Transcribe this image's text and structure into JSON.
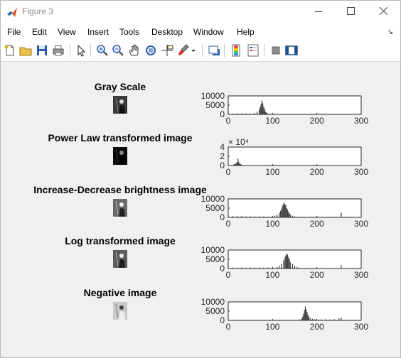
{
  "window": {
    "title": "Figure 3",
    "controls": [
      "minimize",
      "maximize",
      "close"
    ]
  },
  "menubar": {
    "items": [
      "File",
      "Edit",
      "View",
      "Insert",
      "Tools",
      "Desktop",
      "Window",
      "Help"
    ]
  },
  "toolbar": {
    "icons": [
      "new-figure-icon",
      "open-file-icon",
      "save-icon",
      "print-icon",
      "edit-plot-arrow-icon",
      "zoom-in-icon",
      "zoom-out-icon",
      "pan-hand-icon",
      "rotate-3d-icon",
      "data-cursor-icon",
      "brush-icon",
      "brush-dropdown-icon",
      "link-plot-icon",
      "insert-colorbar-icon",
      "insert-legend-icon",
      "hide-plot-tools-icon",
      "show-plot-tools-icon"
    ]
  },
  "colors": {
    "background": "#f0f0f0",
    "bar": "#3c3c3c",
    "axes_face": "#ffffff"
  },
  "panels": [
    {
      "title": "Gray Scale",
      "thumb_tone": "dark-gray"
    },
    {
      "title": "Power Law transformed image",
      "thumb_tone": "black"
    },
    {
      "title": "Increase-Decrease brightness image",
      "thumb_tone": "gray"
    },
    {
      "title": "Log transformed image",
      "thumb_tone": "gray"
    },
    {
      "title": "Negative image",
      "thumb_tone": "light"
    }
  ],
  "chart_data": [
    {
      "type": "bar",
      "xlim": [
        0,
        300
      ],
      "ylim": [
        0,
        10000
      ],
      "xticks": [
        "0",
        "100",
        "200",
        "300"
      ],
      "yticks": [
        "0",
        "5000",
        "10000"
      ],
      "exponent_label": "",
      "x": [
        0,
        10,
        20,
        30,
        40,
        50,
        60,
        65,
        70,
        72,
        74,
        76,
        78,
        80,
        82,
        84,
        86,
        88,
        90,
        95,
        100
      ],
      "values": [
        800,
        500,
        600,
        450,
        500,
        400,
        800,
        1500,
        2500,
        4000,
        5500,
        7500,
        6000,
        4000,
        3000,
        1500,
        1000,
        600,
        400,
        200,
        100
      ]
    },
    {
      "type": "bar",
      "xlim": [
        0,
        300
      ],
      "ylim": [
        0,
        40000
      ],
      "xticks": [
        "0",
        "100",
        "200",
        "300"
      ],
      "yticks": [
        "0",
        "2",
        "4"
      ],
      "exponent_label": "× 10⁴",
      "x": [
        12,
        14,
        16,
        18,
        20,
        22,
        24,
        26,
        28,
        30,
        32
      ],
      "values": [
        2000,
        3000,
        4000,
        5000,
        7000,
        15000,
        8000,
        4000,
        3000,
        2000,
        1000
      ]
    },
    {
      "type": "bar",
      "xlim": [
        0,
        300
      ],
      "ylim": [
        0,
        10000
      ],
      "xticks": [
        "0",
        "100",
        "200",
        "300"
      ],
      "yticks": [
        "0",
        "5000",
        "10000"
      ],
      "exponent_label": "",
      "x": [
        0,
        10,
        20,
        30,
        40,
        50,
        60,
        70,
        80,
        90,
        100,
        105,
        110,
        115,
        118,
        120,
        122,
        124,
        126,
        128,
        130,
        132,
        134,
        136,
        138,
        140,
        145,
        150,
        160,
        170,
        180,
        200,
        220,
        240,
        255
      ],
      "values": [
        800,
        700,
        600,
        700,
        500,
        600,
        500,
        600,
        500,
        400,
        600,
        900,
        1300,
        2500,
        3500,
        4500,
        6000,
        7200,
        8000,
        7000,
        6500,
        5000,
        4000,
        3000,
        2200,
        1500,
        900,
        600,
        300,
        200,
        100,
        100,
        100,
        100,
        2500
      ]
    },
    {
      "type": "bar",
      "xlim": [
        0,
        300
      ],
      "ylim": [
        0,
        10000
      ],
      "xticks": [
        "0",
        "100",
        "200",
        "300"
      ],
      "yticks": [
        "0",
        "5000",
        "10000"
      ],
      "exponent_label": "",
      "x": [
        0,
        10,
        20,
        30,
        40,
        50,
        60,
        70,
        80,
        90,
        100,
        110,
        115,
        120,
        125,
        128,
        130,
        132,
        134,
        136,
        138,
        140,
        145,
        150,
        155,
        160,
        170,
        190,
        210,
        230,
        255
      ],
      "values": [
        700,
        600,
        500,
        600,
        500,
        600,
        500,
        600,
        500,
        600,
        600,
        900,
        1500,
        2500,
        4500,
        6000,
        7000,
        8200,
        7500,
        6000,
        5000,
        3500,
        2500,
        1500,
        900,
        500,
        300,
        200,
        150,
        100,
        1800
      ]
    },
    {
      "type": "bar",
      "xlim": [
        0,
        300
      ],
      "ylim": [
        0,
        10000
      ],
      "xticks": [
        "0",
        "100",
        "200",
        "300"
      ],
      "yticks": [
        "0",
        "5000",
        "10000"
      ],
      "exponent_label": "",
      "x": [
        150,
        155,
        160,
        165,
        168,
        170,
        172,
        174,
        176,
        178,
        180,
        182,
        185,
        190,
        195,
        200,
        210,
        220,
        230,
        240,
        250,
        255
      ],
      "values": [
        100,
        200,
        400,
        1000,
        2000,
        3500,
        5500,
        7500,
        6000,
        4500,
        3000,
        2000,
        1200,
        800,
        600,
        700,
        500,
        600,
        500,
        600,
        1000,
        1500
      ]
    }
  ]
}
